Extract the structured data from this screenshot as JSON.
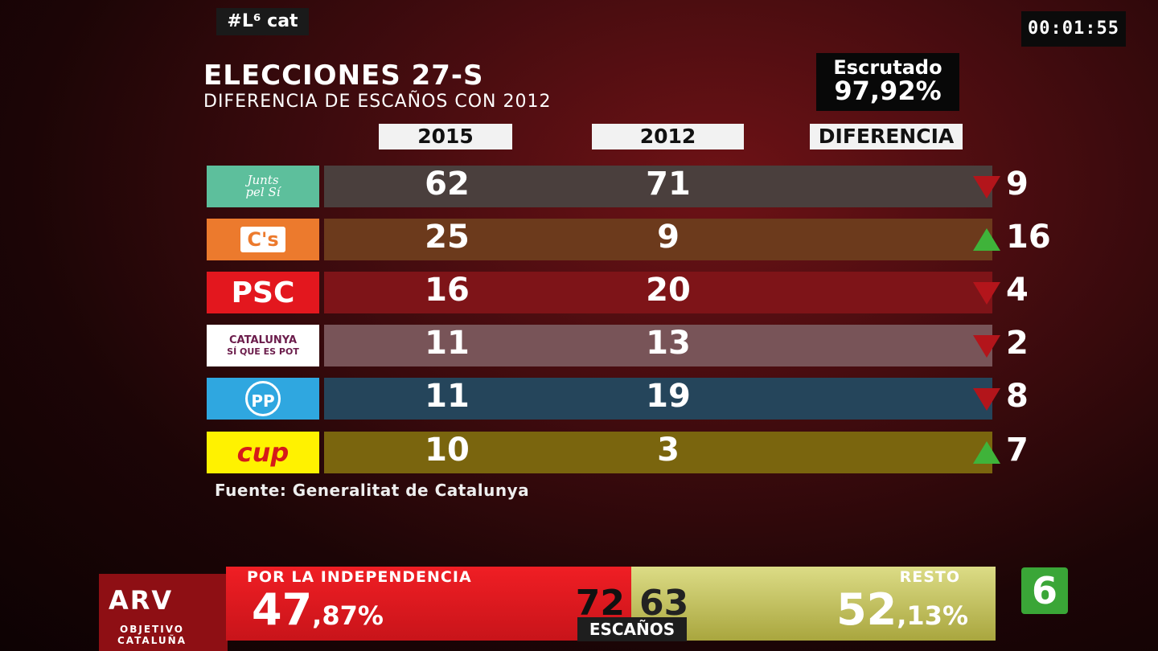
{
  "header": {
    "hashtag": "#L⁶ cat",
    "clock": "00:01:55",
    "title": "ELECCIONES 27-S",
    "subtitle": "DIFERENCIA DE ESCAÑOS CON 2012",
    "escrutado_label": "Escrutado",
    "escrutado_value": "97,92%"
  },
  "table": {
    "columns": [
      "2015",
      "2012",
      "DIFERENCIA"
    ],
    "rows": [
      {
        "party": "Junts pel Sí",
        "logo_text": "Junts pel Sí",
        "y2015": "62",
        "y2012": "71",
        "direction": "down",
        "diff": "9",
        "logo_color": "#5dbf9c",
        "band_color": "#4a3f3d"
      },
      {
        "party": "Ciudadanos",
        "logo_text": "C's",
        "y2015": "25",
        "y2012": "9",
        "direction": "up",
        "diff": "16",
        "logo_color": "#ec7a2d",
        "band_color": "#6c3a1c"
      },
      {
        "party": "PSC",
        "logo_text": "PSC",
        "y2015": "16",
        "y2012": "20",
        "direction": "down",
        "diff": "4",
        "logo_color": "#e3171e",
        "band_color": "#7e1418"
      },
      {
        "party": "Catalunya Sí que es Pot",
        "logo_text": "CATALUNYA",
        "logo_text2": "SÍ QUE ES POT",
        "y2015": "11",
        "y2012": "13",
        "direction": "down",
        "diff": "2",
        "logo_color": "#ffffff",
        "band_color": "#785458"
      },
      {
        "party": "PP",
        "logo_text": "PP",
        "y2015": "11",
        "y2012": "19",
        "direction": "down",
        "diff": "8",
        "logo_color": "#2fa7e0",
        "band_color": "#25455b"
      },
      {
        "party": "CUP",
        "logo_text": "cup",
        "y2015": "10",
        "y2012": "3",
        "direction": "up",
        "diff": "7",
        "logo_color": "#fff200",
        "band_color": "#7a650e"
      }
    ],
    "source": "Fuente: Generalitat de Catalunya"
  },
  "ticker": {
    "brand_top": "ARV",
    "brand_sub": "OBJETIVO CATALUÑA",
    "independence_label": "POR LA INDEPENDENCIA",
    "independence_pct_int": "47",
    "independence_pct_dec": ",87%",
    "independence_seats": "72",
    "rest_label": "RESTO",
    "rest_pct_int": "52",
    "rest_pct_dec": ",13%",
    "rest_seats": "63",
    "seats_label": "ESCAÑOS",
    "channel": "6"
  }
}
